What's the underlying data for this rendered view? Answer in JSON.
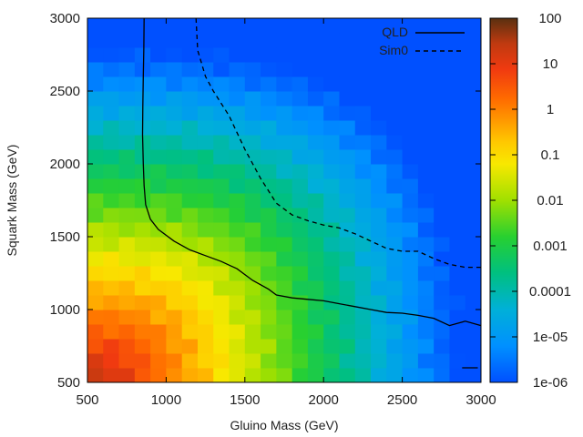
{
  "chart_data": {
    "type": "heatmap",
    "title": "",
    "xlabel": "Gluino Mass (GeV)",
    "ylabel": "Squark Mass (GeV)",
    "xlim": [
      500,
      3000
    ],
    "ylim": [
      500,
      3000
    ],
    "grid_step": 100,
    "x_ticks": [
      "500",
      "1000",
      "1500",
      "2000",
      "2500",
      "3000"
    ],
    "y_ticks": [
      "500",
      "1000",
      "1500",
      "2000",
      "2500",
      "3000"
    ],
    "colorbar": {
      "scale": "log",
      "range": [
        1e-06,
        100
      ],
      "ticks": [
        "100",
        "10",
        "1",
        "0.1",
        "0.01",
        "0.001",
        "0.0001",
        "1e-05",
        "1e-06"
      ]
    },
    "legend_position": "top-right",
    "series": [
      {
        "name": "QLD",
        "style": "solid",
        "x": [
          860,
          858,
          855,
          852,
          850,
          855,
          860,
          870,
          900,
          950,
          1050,
          1150,
          1250,
          1350,
          1450,
          1550,
          1650,
          1700,
          1800,
          1900,
          2000,
          2100,
          2200,
          2300,
          2400,
          2500,
          2600,
          2700,
          2800,
          2900,
          3000
        ],
        "y": [
          3000,
          2800,
          2600,
          2400,
          2200,
          2000,
          1850,
          1720,
          1620,
          1550,
          1470,
          1410,
          1370,
          1330,
          1280,
          1200,
          1140,
          1100,
          1080,
          1070,
          1060,
          1040,
          1020,
          1000,
          980,
          975,
          960,
          940,
          890,
          920,
          890
        ]
      },
      {
        "name": "Sim0",
        "style": "dashed",
        "x": [
          1190,
          1200,
          1250,
          1300,
          1400,
          1500,
          1600,
          1700,
          1800,
          1900,
          2000,
          2100,
          2200,
          2300,
          2400,
          2500,
          2600,
          2700,
          2800,
          2900,
          3000
        ],
        "y": [
          3000,
          2780,
          2600,
          2500,
          2330,
          2100,
          1900,
          1730,
          1650,
          1610,
          1580,
          1560,
          1520,
          1470,
          1420,
          1400,
          1400,
          1350,
          1310,
          1290,
          1290
        ]
      },
      {
        "name": "QLD-fragment",
        "style": "solid",
        "x": [
          2880,
          2980
        ],
        "y": [
          600,
          600
        ]
      }
    ]
  },
  "legend": {
    "items": [
      {
        "label": "QLD",
        "style": "solid"
      },
      {
        "label": "Sim0",
        "style": "dashed"
      }
    ]
  }
}
